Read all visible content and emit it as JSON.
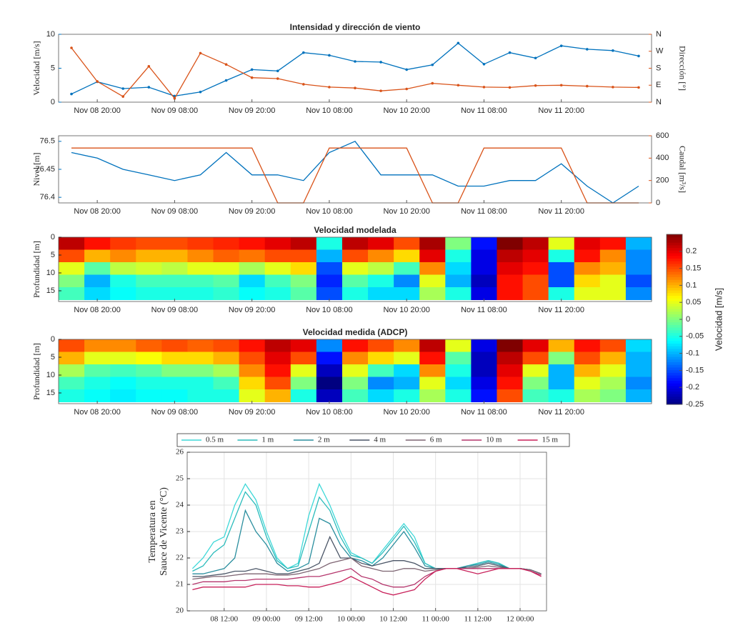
{
  "chart_data": [
    {
      "type": "line",
      "title": "Intensidad y dirección de viento",
      "ylabel": "Velocidad [m/s]",
      "y2label": "Dirección [°]",
      "marker": true,
      "categories": [
        null,
        "Nov 08 20:00",
        null,
        null,
        "Nov 09 08:00",
        null,
        null,
        "Nov 09 20:00",
        null,
        null,
        "Nov 10 08:00",
        null,
        null,
        "Nov 10 20:00",
        null,
        null,
        "Nov 11 08:00",
        null,
        null,
        "Nov 11 20:00",
        null,
        null,
        null
      ],
      "ylim": [
        0,
        10
      ],
      "yticks": [
        0,
        5,
        10
      ],
      "y2lim": [
        0,
        360
      ],
      "y2ticks": [
        {
          "value": 0,
          "label": "N"
        },
        {
          "value": 90,
          "label": "E"
        },
        {
          "value": 180,
          "label": "S"
        },
        {
          "value": 270,
          "label": "W"
        },
        {
          "value": 360,
          "label": "N"
        }
      ],
      "series": [
        {
          "color": "#0072bd",
          "values": [
            1.2,
            3.0,
            2.0,
            2.2,
            0.9,
            1.5,
            3.2,
            4.8,
            4.6,
            7.3,
            6.9,
            6.0,
            5.9,
            4.8,
            5.5,
            8.7,
            5.6,
            7.3,
            6.5,
            8.3,
            7.8,
            7.6,
            6.8
          ]
        },
        {
          "color": "#d95319",
          "axis": "y2",
          "values": [
            288,
            110,
            30,
            190,
            20,
            260,
            200,
            130,
            125,
            95,
            80,
            75,
            60,
            70,
            100,
            90,
            80,
            78,
            88,
            90,
            85,
            80,
            78
          ]
        }
      ]
    },
    {
      "type": "line",
      "ylabel": "Nivel [m]",
      "y2label": "Caudal [m³/s]",
      "categories": [
        null,
        "Nov 08 20:00",
        null,
        null,
        "Nov 09 08:00",
        null,
        null,
        "Nov 09 20:00",
        null,
        null,
        "Nov 10 08:00",
        null,
        null,
        "Nov 10 20:00",
        null,
        null,
        "Nov 11 08:00",
        null,
        null,
        "Nov 11 20:00",
        null,
        null,
        null
      ],
      "ylim": [
        76.39,
        76.51
      ],
      "yticks": [
        76.4,
        76.45,
        76.5
      ],
      "y2lim": [
        0,
        600
      ],
      "y2ticks": [
        0,
        200,
        400,
        600
      ],
      "series": [
        {
          "color": "#0072bd",
          "values": [
            76.48,
            76.47,
            76.45,
            76.44,
            76.43,
            76.44,
            76.48,
            76.44,
            76.44,
            76.43,
            76.48,
            76.5,
            76.44,
            76.44,
            76.44,
            76.42,
            76.42,
            76.43,
            76.43,
            76.46,
            76.42,
            76.39,
            76.42
          ]
        },
        {
          "color": "#d95319",
          "axis": "y2",
          "values": [
            490,
            490,
            490,
            490,
            490,
            490,
            490,
            490,
            0,
            0,
            490,
            490,
            490,
            490,
            0,
            0,
            490,
            490,
            490,
            490,
            0,
            0,
            0
          ]
        }
      ]
    },
    {
      "type": "heatmap",
      "title": "Velocidad modelada",
      "ylabel": "Profundidad [m]",
      "yreverse": true,
      "categories": [
        null,
        "Nov 08 20:00",
        null,
        null,
        "Nov 09 08:00",
        null,
        null,
        "Nov 09 20:00",
        null,
        null,
        "Nov 10 08:00",
        null,
        null,
        "Nov 10 20:00",
        null,
        null,
        "Nov 11 08:00",
        null,
        null,
        "Nov 11 20:00",
        null,
        null,
        null
      ],
      "ylim": [
        0,
        18
      ],
      "yticks": [
        0,
        5,
        10,
        15
      ],
      "ybins": [
        0,
        3.5,
        7,
        10.5,
        14,
        17.5
      ],
      "z": [
        [
          0.22,
          0.18,
          0.16,
          0.15,
          0.15,
          0.16,
          0.17,
          0.18,
          0.2,
          0.22,
          -0.05,
          0.22,
          0.2,
          0.15,
          0.23,
          0.0,
          -0.18,
          0.25,
          0.22,
          0.05,
          0.2,
          0.18,
          -0.1
        ],
        [
          0.15,
          0.1,
          0.12,
          0.1,
          0.1,
          0.12,
          0.14,
          0.13,
          0.15,
          0.15,
          -0.1,
          0.15,
          0.12,
          0.08,
          0.2,
          -0.05,
          -0.2,
          0.22,
          0.2,
          -0.05,
          0.18,
          0.12,
          -0.12
        ],
        [
          0.05,
          -0.02,
          0.03,
          0.04,
          0.03,
          0.05,
          0.05,
          0.02,
          0.05,
          0.08,
          -0.15,
          0.05,
          0.03,
          -0.03,
          0.12,
          -0.08,
          -0.2,
          0.2,
          0.18,
          -0.15,
          0.12,
          0.1,
          -0.12
        ],
        [
          0.0,
          -0.1,
          -0.05,
          -0.03,
          -0.03,
          -0.03,
          -0.02,
          -0.08,
          -0.03,
          0.0,
          -0.17,
          -0.02,
          -0.05,
          -0.12,
          0.05,
          -0.1,
          -0.22,
          0.18,
          0.15,
          -0.15,
          0.08,
          0.05,
          -0.15
        ],
        [
          -0.03,
          -0.08,
          -0.06,
          -0.05,
          -0.05,
          -0.05,
          -0.04,
          -0.06,
          -0.05,
          -0.02,
          -0.15,
          -0.05,
          -0.08,
          -0.08,
          0.02,
          -0.05,
          -0.2,
          0.18,
          0.15,
          -0.05,
          0.05,
          0.05,
          -0.12
        ]
      ]
    },
    {
      "type": "heatmap",
      "title": "Velocidad medida (ADCP)",
      "ylabel": "Profundidad [m]",
      "yreverse": true,
      "categories": [
        null,
        "Nov 08 20:00",
        null,
        null,
        "Nov 09 08:00",
        null,
        null,
        "Nov 09 20:00",
        null,
        null,
        "Nov 10 08:00",
        null,
        null,
        "Nov 10 20:00",
        null,
        null,
        "Nov 11 08:00",
        null,
        null,
        "Nov 11 20:00",
        null,
        null,
        null
      ],
      "ylim": [
        0,
        18
      ],
      "yticks": [
        0,
        5,
        10,
        15
      ],
      "ybins": [
        0,
        3.5,
        7,
        10.5,
        14,
        17.5
      ],
      "z": [
        [
          0.15,
          0.12,
          0.12,
          0.14,
          0.15,
          0.14,
          0.15,
          0.18,
          0.22,
          0.2,
          -0.12,
          0.18,
          0.15,
          0.12,
          0.22,
          0.05,
          -0.2,
          0.25,
          0.2,
          0.1,
          0.18,
          0.15,
          -0.08
        ],
        [
          0.1,
          0.05,
          0.05,
          0.06,
          0.08,
          0.08,
          0.1,
          0.15,
          0.2,
          0.15,
          -0.18,
          0.12,
          0.08,
          0.05,
          0.18,
          -0.02,
          -0.22,
          0.22,
          0.15,
          0.0,
          0.15,
          0.1,
          -0.1
        ],
        [
          0.02,
          -0.02,
          -0.03,
          -0.02,
          0.0,
          0.0,
          0.02,
          0.12,
          0.18,
          0.05,
          -0.22,
          0.05,
          -0.03,
          -0.08,
          0.12,
          -0.05,
          -0.22,
          0.2,
          0.05,
          -0.1,
          0.1,
          0.05,
          -0.1
        ],
        [
          -0.03,
          -0.05,
          -0.06,
          -0.05,
          -0.05,
          -0.05,
          -0.03,
          0.08,
          0.15,
          0.0,
          -0.25,
          0.0,
          -0.12,
          -0.1,
          0.05,
          -0.08,
          -0.2,
          0.18,
          0.0,
          -0.1,
          0.05,
          0.02,
          -0.12
        ],
        [
          -0.05,
          -0.06,
          -0.07,
          -0.06,
          -0.06,
          -0.05,
          -0.05,
          0.05,
          0.1,
          -0.05,
          -0.22,
          -0.03,
          -0.08,
          -0.05,
          0.02,
          -0.05,
          -0.18,
          0.15,
          -0.03,
          -0.05,
          0.02,
          0.0,
          -0.1
        ]
      ]
    },
    {
      "type": "colorbar",
      "label": "Velocidad [m/s]",
      "colormap": "jet",
      "clim": [
        -0.25,
        0.25
      ],
      "ticks": [
        0.2,
        0.15,
        0.1,
        0.05,
        0,
        -0.05,
        -0.1,
        -0.15,
        -0.2,
        -0.25
      ]
    },
    {
      "type": "line",
      "ylabel": [
        "Temperatura en",
        "Sauce de Vicente (°C)"
      ],
      "grid": true,
      "legend": "top",
      "categories": [
        null,
        null,
        null,
        "08 12:00",
        null,
        null,
        null,
        "09 00:00",
        null,
        null,
        null,
        "09 12:00",
        null,
        null,
        null,
        "10 00:00",
        null,
        null,
        null,
        "10 12:00",
        null,
        null,
        null,
        "11 00:00",
        null,
        null,
        null,
        "11 12:00",
        null,
        null,
        null,
        "12 00:00",
        null,
        null
      ],
      "ylim": [
        20,
        26
      ],
      "yticks": [
        20,
        21,
        22,
        23,
        24,
        25,
        26
      ],
      "series": [
        {
          "name": "0.5 m",
          "color": "#3ed8d8",
          "values": [
            21.6,
            22.0,
            22.6,
            22.8,
            24.0,
            24.8,
            24.2,
            23.0,
            22.0,
            21.6,
            21.8,
            23.6,
            24.8,
            24.0,
            23.0,
            22.2,
            22.0,
            21.8,
            22.3,
            22.8,
            23.3,
            22.8,
            21.8,
            21.6,
            21.6,
            21.6,
            21.7,
            21.8,
            21.9,
            21.8,
            21.6,
            21.6,
            21.55,
            21.4
          ]
        },
        {
          "name": "1 m",
          "color": "#2bbcbc",
          "values": [
            21.5,
            21.7,
            22.2,
            22.5,
            23.5,
            24.5,
            24.0,
            22.8,
            21.9,
            21.6,
            21.7,
            23.0,
            24.3,
            23.8,
            22.8,
            22.1,
            22.0,
            21.8,
            22.2,
            22.7,
            23.2,
            22.6,
            21.8,
            21.6,
            21.6,
            21.6,
            21.7,
            21.8,
            21.9,
            21.8,
            21.6,
            21.6,
            21.55,
            21.4
          ]
        },
        {
          "name": "2 m",
          "color": "#2a8e9e",
          "values": [
            21.4,
            21.4,
            21.5,
            21.6,
            22.0,
            23.8,
            23.0,
            22.5,
            21.8,
            21.5,
            21.6,
            21.8,
            23.5,
            23.3,
            22.5,
            22.0,
            21.9,
            21.7,
            22.0,
            22.5,
            23.0,
            22.4,
            21.7,
            21.6,
            21.6,
            21.6,
            21.7,
            21.75,
            21.85,
            21.75,
            21.6,
            21.6,
            21.55,
            21.4
          ]
        },
        {
          "name": "4 m",
          "color": "#4a5566",
          "values": [
            21.3,
            21.3,
            21.35,
            21.4,
            21.5,
            21.5,
            21.6,
            21.5,
            21.4,
            21.4,
            21.5,
            21.6,
            21.8,
            22.8,
            22.0,
            22.0,
            21.8,
            21.7,
            21.8,
            21.9,
            21.9,
            21.8,
            21.6,
            21.6,
            21.6,
            21.6,
            21.65,
            21.7,
            21.8,
            21.7,
            21.6,
            21.6,
            21.55,
            21.4
          ]
        },
        {
          "name": "6 m",
          "color": "#7d6472",
          "values": [
            21.2,
            21.25,
            21.3,
            21.3,
            21.35,
            21.4,
            21.4,
            21.4,
            21.35,
            21.35,
            21.4,
            21.5,
            21.6,
            21.8,
            21.9,
            22.0,
            21.7,
            21.6,
            21.5,
            21.5,
            21.6,
            21.6,
            21.5,
            21.55,
            21.6,
            21.6,
            21.6,
            21.65,
            21.7,
            21.65,
            21.6,
            21.6,
            21.55,
            21.4
          ]
        },
        {
          "name": "10 m",
          "color": "#b4356c",
          "values": [
            21.0,
            21.1,
            21.1,
            21.1,
            21.15,
            21.15,
            21.2,
            21.2,
            21.2,
            21.2,
            21.25,
            21.3,
            21.3,
            21.4,
            21.5,
            21.6,
            21.3,
            21.2,
            21.0,
            20.9,
            20.9,
            21.0,
            21.3,
            21.5,
            21.6,
            21.6,
            21.6,
            21.6,
            21.6,
            21.6,
            21.6,
            21.6,
            21.5,
            21.35
          ]
        },
        {
          "name": "15 m",
          "color": "#c8205a",
          "values": [
            20.8,
            20.9,
            20.9,
            20.9,
            20.9,
            20.9,
            21.0,
            21.0,
            21.0,
            20.95,
            20.95,
            20.9,
            20.9,
            21.0,
            21.1,
            21.3,
            21.1,
            20.9,
            20.7,
            20.6,
            20.7,
            20.8,
            21.2,
            21.5,
            21.6,
            21.6,
            21.5,
            21.4,
            21.5,
            21.6,
            21.6,
            21.6,
            21.5,
            21.3
          ]
        }
      ]
    }
  ]
}
